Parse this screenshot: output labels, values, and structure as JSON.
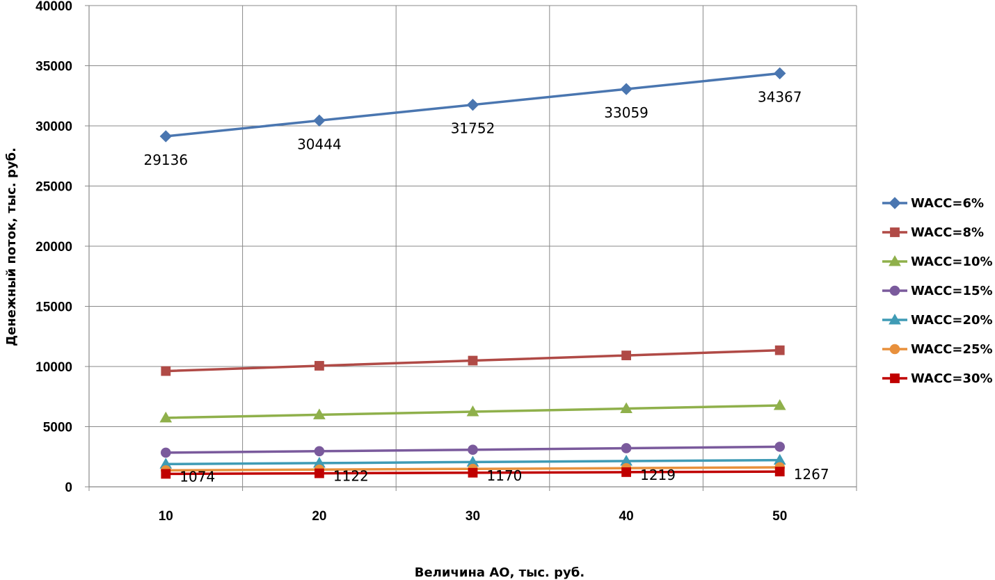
{
  "chart_data": {
    "type": "line",
    "title": "",
    "xlabel": "Величина  АО, тыс. руб.",
    "ylabel": "Денежный поток, тыс. руб.",
    "x": [
      10,
      20,
      30,
      40,
      50
    ],
    "x_tick_labels": [
      "10",
      "20",
      "30",
      "40",
      "50"
    ],
    "xlim": [
      5,
      55
    ],
    "ylim": [
      0,
      40000
    ],
    "y_ticks": [
      0,
      5000,
      10000,
      15000,
      20000,
      25000,
      30000,
      35000,
      40000
    ],
    "y_tick_labels": [
      "0",
      "5000",
      "10000",
      "15000",
      "20000",
      "25000",
      "30000",
      "35000",
      "40000"
    ],
    "grid": true,
    "legend_position": "right",
    "series": [
      {
        "name": "WACC=6%",
        "color": "#4a76b0",
        "marker": "diamond",
        "values": [
          29136,
          30444,
          31752,
          33059,
          34367
        ],
        "labels": [
          "29136",
          "30444",
          "31752",
          "33059",
          "34367"
        ]
      },
      {
        "name": "WACC=8%",
        "color": "#b04a46",
        "marker": "square",
        "values": [
          9620,
          10060,
          10490,
          10920,
          11350
        ],
        "labels": []
      },
      {
        "name": "WACC=10%",
        "color": "#8fb04b",
        "marker": "triangle",
        "values": [
          5730,
          5990,
          6240,
          6500,
          6760
        ],
        "labels": []
      },
      {
        "name": "WACC=15%",
        "color": "#7a5a9c",
        "marker": "circle",
        "values": [
          2840,
          2960,
          3080,
          3210,
          3330
        ],
        "labels": []
      },
      {
        "name": "WACC=20%",
        "color": "#3f9bb5",
        "marker": "triangle",
        "values": [
          1890,
          1970,
          2060,
          2140,
          2220
        ],
        "labels": []
      },
      {
        "name": "WACC=25%",
        "color": "#e8903c",
        "marker": "circle",
        "values": [
          1370,
          1430,
          1490,
          1550,
          1620
        ],
        "labels": []
      },
      {
        "name": "WACC=30%",
        "color": "#c00000",
        "marker": "square",
        "values": [
          1074,
          1122,
          1170,
          1219,
          1267
        ],
        "labels": [
          "1074",
          "1122",
          "1170",
          "1219",
          "1267"
        ]
      }
    ]
  }
}
